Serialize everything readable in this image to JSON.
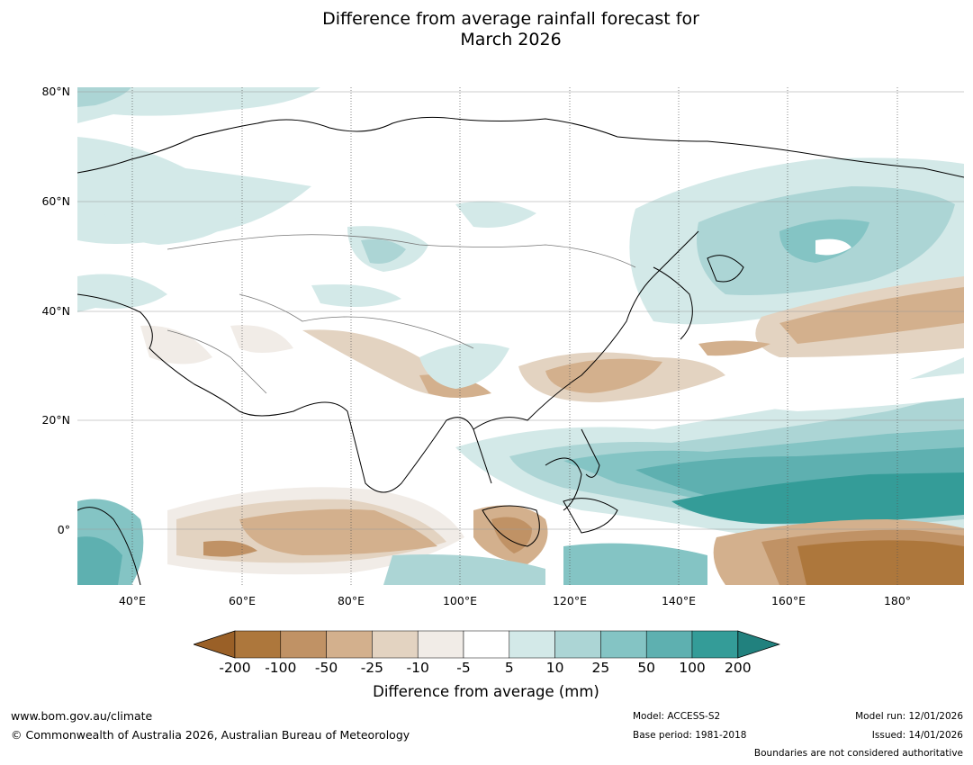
{
  "title_line1": "Difference from average rainfall forecast for",
  "title_line2": "March 2026",
  "lat_labels": [
    "80°N",
    "60°N",
    "40°N",
    "20°N",
    "0°"
  ],
  "lon_labels": [
    "40°E",
    "60°E",
    "80°E",
    "100°E",
    "120°E",
    "140°E",
    "160°E",
    "180°"
  ],
  "colorbar": {
    "ticks": [
      "-200",
      "-100",
      "-50",
      "-25",
      "-10",
      "-5",
      "5",
      "10",
      "25",
      "50",
      "100",
      "200"
    ],
    "colors": [
      "#9a6027",
      "#ad773c",
      "#c09265",
      "#d3b08d",
      "#e3d3c1",
      "#f1ece7",
      "#ffffff",
      "#d3e9e8",
      "#acd5d5",
      "#84c4c4",
      "#5eb0b0",
      "#349c98",
      "#21817e"
    ],
    "label": "Difference from average (mm)"
  },
  "footer": {
    "url": "www.bom.gov.au/climate",
    "copyright": "© Commonwealth of Australia 2026, Australian Bureau of Meteorology",
    "model": "Model: ACCESS-S2",
    "base_period": "Base period: 1981-2018",
    "model_run": "Model run: 12/01/2026",
    "issued": "Issued: 14/01/2026",
    "disclaimer": "Boundaries are not considered authoritative"
  }
}
